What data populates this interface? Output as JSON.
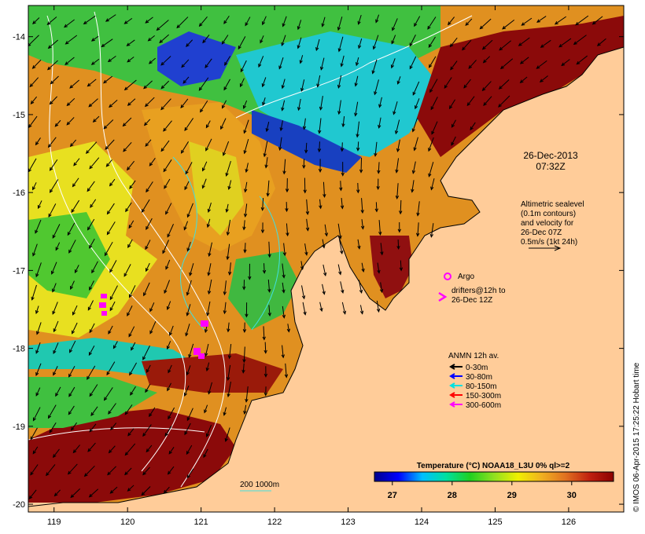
{
  "axes": {
    "x_ticks": [
      "119",
      "120",
      "121",
      "122",
      "123",
      "124",
      "125",
      "126"
    ],
    "y_ticks": [
      "-14",
      "-15",
      "-16",
      "-17",
      "-18",
      "-19",
      "-20"
    ],
    "lon_range": [
      118.65,
      126.75
    ],
    "lat_range": [
      -20.1,
      -13.6
    ]
  },
  "annotations": {
    "date": "26-Dec-2013",
    "time": "07:32Z",
    "altimetry_lines": [
      "Altimetric sealevel",
      "(0.1m contours)",
      "and velocity for",
      "26-Dec 07Z",
      "0.5m/s (1kt 24h)"
    ],
    "argo_label": "Argo",
    "drifters_lines": [
      "drifters@12h to",
      "26-Dec 12Z"
    ],
    "anmn_title": "ANMN 12h av.",
    "depth_legend": [
      {
        "label": "0-30m",
        "color": "#000000"
      },
      {
        "label": "30-80m",
        "color": "#0000ff"
      },
      {
        "label": "80-150m",
        "color": "#00e0e0"
      },
      {
        "label": "150-300m",
        "color": "#ff0000"
      },
      {
        "label": "300-600m",
        "color": "#ff00ff"
      }
    ],
    "scale_bar": "200  1000m",
    "credit": "© IMOS 06-Apr-2015 17:25:22 Hobart time"
  },
  "colorbar": {
    "title": "Temperature (°C) NOAA18_L3U 0% ql>=2",
    "ticks": [
      "27",
      "28",
      "29",
      "30"
    ],
    "min": 26.7,
    "max": 30.7,
    "colors": [
      "#00008b",
      "#0000ff",
      "#00bfff",
      "#00e0a0",
      "#20d020",
      "#90e020",
      "#f0f000",
      "#f0b020",
      "#e07020",
      "#c02010",
      "#8b0000"
    ]
  },
  "colors": {
    "land": "#ffcc99",
    "coast": "#000000",
    "vector": "#000000",
    "contour_white": "#ffffff",
    "contour_cyan": "#40e0e0",
    "argo": "#ff00ff",
    "drifter": "#ff00ff"
  }
}
